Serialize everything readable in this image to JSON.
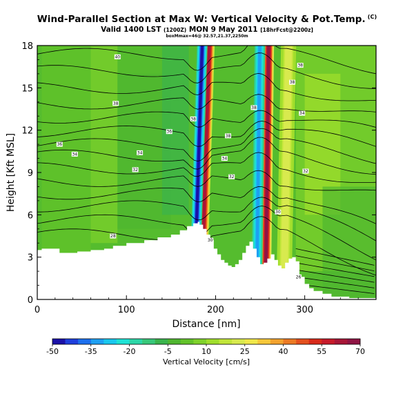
{
  "header": {
    "title": "Wind-Parallel Section at Max W: Vertical Velocity & Pot.Temp.",
    "title_mark": "(C)",
    "valid_prefix": "Valid 1400 LST",
    "valid_utc": "(1200Z)",
    "valid_date": "MON 9 May 2011",
    "valid_fcst": "[18hrFcst@2200z]",
    "subline": "boxMmax=46@ 32.57,21.37,2250m"
  },
  "chart_data": {
    "type": "heatmap",
    "title": "Wind-Parallel Section at Max W: Vertical Velocity & Pot.Temp.",
    "xlabel": "Distance [nm]",
    "ylabel": "Height [Kft MSL]",
    "xlim": [
      0,
      380
    ],
    "ylim": [
      0,
      18
    ],
    "xticks": [
      0,
      100,
      200,
      300
    ],
    "yticks": [
      0,
      3,
      6,
      9,
      12,
      15,
      18
    ],
    "colorbar": {
      "title": "Vertical Velocity [cm/s]",
      "tick_labels": [
        "-50",
        "-35",
        "-20",
        "-5",
        "10",
        "25",
        "40",
        "55",
        "70"
      ],
      "levels": [
        -50,
        -45,
        -40,
        -35,
        -30,
        -25,
        -20,
        -15,
        -10,
        -5,
        0,
        5,
        10,
        15,
        20,
        25,
        30,
        35,
        40,
        45,
        50,
        55,
        60,
        65,
        70
      ],
      "colors": [
        "#1a10a8",
        "#1f3fdc",
        "#1c70ee",
        "#1ea0f2",
        "#19c8ee",
        "#1ee3d6",
        "#2cd7a8",
        "#38c87a",
        "#3ab44c",
        "#4fb630",
        "#63c32a",
        "#7fd22b",
        "#a1de2c",
        "#c2e63a",
        "#d8ea4e",
        "#f0e84a",
        "#f6c83a",
        "#f3a32e",
        "#ec7a24",
        "#e4501e",
        "#d82a1a",
        "#c71a2a",
        "#a81637",
        "#8f1444"
      ]
    },
    "terrain": {
      "x": [
        0,
        5,
        25,
        45,
        60,
        75,
        85,
        100,
        120,
        135,
        150,
        160,
        168,
        175,
        180,
        182,
        186,
        190,
        194,
        198,
        202,
        206,
        210,
        214,
        218,
        222,
        226,
        230,
        234,
        238,
        242,
        246,
        250,
        254,
        258,
        262,
        266,
        270,
        274,
        278,
        282,
        286,
        290,
        294,
        300,
        305,
        310,
        320,
        330,
        350,
        380
      ],
      "y": [
        3.5,
        3.6,
        3.3,
        3.4,
        3.5,
        3.6,
        3.8,
        4.0,
        4.2,
        4.4,
        4.6,
        4.9,
        5.2,
        5.4,
        5.5,
        5.3,
        5.0,
        4.6,
        4.2,
        3.6,
        3.2,
        2.8,
        2.6,
        2.4,
        2.3,
        2.5,
        2.8,
        3.3,
        3.8,
        4.1,
        3.6,
        3.0,
        2.5,
        2.6,
        2.9,
        3.2,
        2.8,
        2.4,
        2.2,
        2.6,
        2.9,
        3.0,
        2.7,
        1.6,
        1.1,
        0.8,
        0.6,
        0.4,
        0.2,
        0.1,
        0.0
      ]
    },
    "w_features": [
      {
        "name": "updraft-left-band",
        "x0": 178,
        "x1": 190,
        "slope": 0.5,
        "w": 65
      },
      {
        "name": "downdraft-left-band",
        "x0": 170,
        "x1": 182,
        "slope": 0.5,
        "w": -45
      },
      {
        "name": "updraft-right-band",
        "x0": 250,
        "x1": 262,
        "slope": 0.2,
        "w": 70
      },
      {
        "name": "downdraft-right-band",
        "x0": 240,
        "x1": 252,
        "slope": 0.2,
        "w": -30
      },
      {
        "name": "weak-updraft-right",
        "x0": 268,
        "x1": 285,
        "slope": 0.3,
        "w": 25
      }
    ],
    "contour_labels": [
      {
        "text": "40",
        "x": 90,
        "y": 17.2
      },
      {
        "text": "38",
        "x": 88,
        "y": 13.9
      },
      {
        "text": "36",
        "x": 148,
        "y": 11.9
      },
      {
        "text": "36",
        "x": 25,
        "y": 11.0
      },
      {
        "text": "34",
        "x": 42,
        "y": 10.3
      },
      {
        "text": "34",
        "x": 115,
        "y": 10.4
      },
      {
        "text": "32",
        "x": 110,
        "y": 9.2
      },
      {
        "text": "28",
        "x": 85,
        "y": 4.5
      },
      {
        "text": "38",
        "x": 175,
        "y": 12.8
      },
      {
        "text": "38",
        "x": 214,
        "y": 11.6
      },
      {
        "text": "38",
        "x": 243,
        "y": 13.6
      },
      {
        "text": "34",
        "x": 210,
        "y": 10.0
      },
      {
        "text": "32",
        "x": 218,
        "y": 8.7
      },
      {
        "text": "30",
        "x": 270,
        "y": 6.2
      },
      {
        "text": "30",
        "x": 194,
        "y": 4.2
      },
      {
        "text": "38",
        "x": 286,
        "y": 15.4
      },
      {
        "text": "38",
        "x": 295,
        "y": 16.6
      },
      {
        "text": "34",
        "x": 297,
        "y": 13.2
      },
      {
        "text": "32",
        "x": 301,
        "y": 9.1
      },
      {
        "text": "26",
        "x": 293,
        "y": 1.6
      }
    ]
  }
}
